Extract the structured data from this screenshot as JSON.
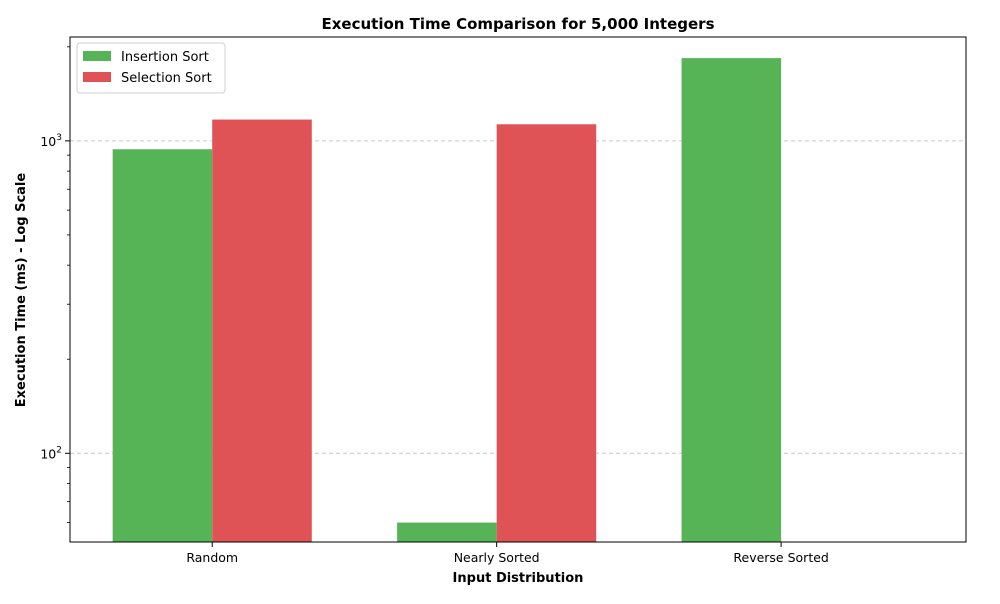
{
  "chart_data": {
    "type": "bar",
    "title": "Execution Time Comparison for 5,000 Integers",
    "xlabel": "Input Distribution",
    "ylabel": "Execution Time (ms) - Log Scale",
    "categories": [
      "Random",
      "Nearly Sorted",
      "Reverse Sorted"
    ],
    "series": [
      {
        "name": "Insertion Sort",
        "values": [
          940,
          60,
          1840
        ],
        "color": "#56b356"
      },
      {
        "name": "Selection Sort",
        "values": [
          1170,
          1130,
          null
        ],
        "color": "#df5255"
      }
    ],
    "yscale": "log",
    "ylim": [
      52,
      2150
    ],
    "yticks": [
      {
        "value": 100,
        "base": "10",
        "exp": "2"
      },
      {
        "value": 1000,
        "base": "10",
        "exp": "3"
      }
    ],
    "grid": "y-major-dashed",
    "legend_position": "top-left"
  }
}
